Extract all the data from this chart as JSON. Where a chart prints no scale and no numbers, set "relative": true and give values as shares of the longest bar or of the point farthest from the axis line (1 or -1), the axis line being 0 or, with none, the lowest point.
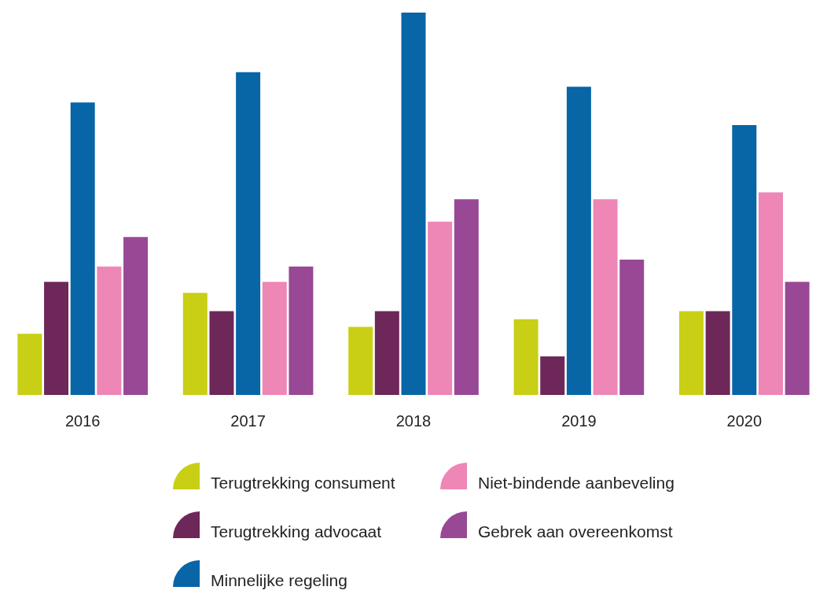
{
  "chart_data": {
    "type": "bar",
    "relative": true,
    "categories": [
      "2016",
      "2017",
      "2018",
      "2019",
      "2020"
    ],
    "legend": "bottom",
    "grid": false,
    "series": [
      {
        "name": "Terugtrekking consument",
        "color": "#c8cf14",
        "values": [
          0.16,
          0.267,
          0.178,
          0.198,
          0.219
        ]
      },
      {
        "name": "Terugtrekking advocaat",
        "color": "#6e2759",
        "values": [
          0.296,
          0.219,
          0.219,
          0.101,
          0.219
        ]
      },
      {
        "name": "Minnelijke regeling",
        "color": "#0865a6",
        "values": [
          0.765,
          0.844,
          1,
          0.806,
          0.706
        ]
      },
      {
        "name": "Niet-bindende aanbeveling",
        "color": "#ee86b6",
        "values": [
          0.336,
          0.296,
          0.453,
          0.512,
          0.53
        ]
      },
      {
        "name": "Gebrek aan overeenkomst",
        "color": "#984895",
        "values": [
          0.413,
          0.336,
          0.512,
          0.354,
          0.296
        ]
      }
    ]
  }
}
